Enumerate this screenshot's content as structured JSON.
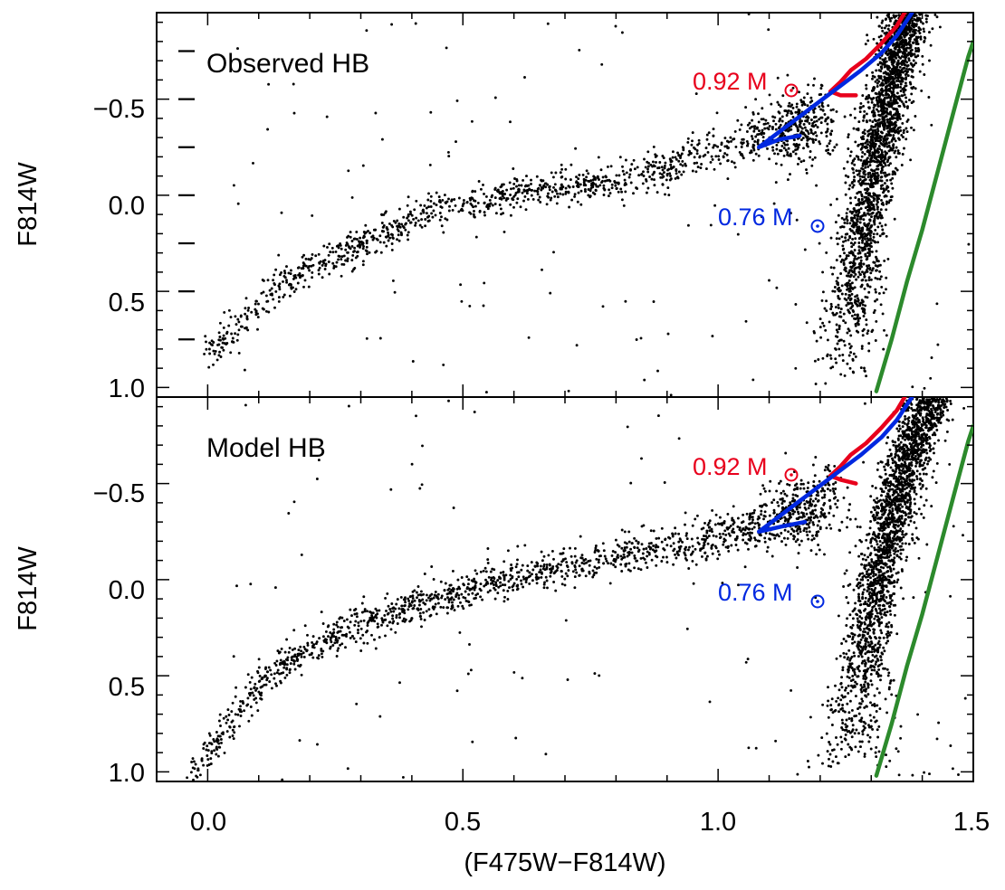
{
  "chart_data": {
    "type": "scatter",
    "xlabel": "(F475W−F814W)",
    "xlim": [
      -0.1,
      1.5
    ],
    "x_ticks": [
      "0.0",
      "0.5",
      "1.0",
      "1.5"
    ],
    "ylim": [
      1.05,
      -0.95
    ],
    "y_ticks": [
      "−0.5",
      "0.0",
      "0.5",
      "1.0"
    ],
    "colors": {
      "heavy": "#e8001c",
      "light": "#0028e0",
      "rgb_ridge": "#2c8a2c",
      "points": "#000000"
    },
    "panels": [
      {
        "title": "Observed HB",
        "ylabel": "F814W",
        "observed_ref_marks": [
          -0.75,
          -0.5,
          -0.25,
          0.0,
          0.25,
          0.5,
          0.75
        ],
        "points": {
          "hb_sequence": [
            {
              "x": 0.0,
              "y": 0.83
            },
            {
              "x": 0.05,
              "y": 0.7
            },
            {
              "x": 0.1,
              "y": 0.57
            },
            {
              "x": 0.15,
              "y": 0.48
            },
            {
              "x": 0.2,
              "y": 0.38
            },
            {
              "x": 0.3,
              "y": 0.26
            },
            {
              "x": 0.4,
              "y": 0.12
            },
            {
              "x": 0.5,
              "y": 0.05
            },
            {
              "x": 0.6,
              "y": -0.01
            },
            {
              "x": 0.7,
              "y": -0.04
            },
            {
              "x": 0.8,
              "y": -0.08
            },
            {
              "x": 0.9,
              "y": -0.14
            },
            {
              "x": 1.0,
              "y": -0.24
            },
            {
              "x": 1.1,
              "y": -0.32
            },
            {
              "x": 1.17,
              "y": -0.4
            },
            {
              "x": 1.22,
              "y": -0.47
            }
          ],
          "red_giant_branch": [
            {
              "x": 1.24,
              "y": 0.98
            },
            {
              "x": 1.26,
              "y": 0.6
            },
            {
              "x": 1.28,
              "y": 0.2
            },
            {
              "x": 1.31,
              "y": -0.2
            },
            {
              "x": 1.34,
              "y": -0.6
            },
            {
              "x": 1.37,
              "y": -0.95
            }
          ]
        },
        "tracks": [
          {
            "name": "0.92 M⊙",
            "label": "0.92 M",
            "color_key": "heavy",
            "x": [
              1.27,
              1.24,
              1.22,
              1.24,
              1.26,
              1.29,
              1.32,
              1.35,
              1.37
            ],
            "y": [
              -0.52,
              -0.52,
              -0.54,
              -0.59,
              -0.65,
              -0.71,
              -0.79,
              -0.88,
              -0.97
            ]
          },
          {
            "name": "0.76 M⊙",
            "label": "0.76 M",
            "color_key": "light",
            "x": [
              1.16,
              1.12,
              1.08,
              1.12,
              1.16,
              1.2,
              1.24,
              1.28,
              1.32,
              1.35,
              1.38
            ],
            "y": [
              -0.31,
              -0.29,
              -0.25,
              -0.33,
              -0.41,
              -0.49,
              -0.57,
              -0.65,
              -0.74,
              -0.83,
              -0.95
            ]
          }
        ],
        "rgb_ridge": {
          "x": [
            1.31,
            1.34,
            1.37,
            1.4,
            1.43,
            1.46,
            1.49,
            1.5
          ],
          "y": [
            1.02,
            0.75,
            0.45,
            0.18,
            -0.12,
            -0.42,
            -0.72,
            -0.8
          ]
        }
      },
      {
        "title": "Model HB",
        "ylabel": "F814W",
        "observed_ref_marks": [],
        "points": {
          "hb_sequence": [
            {
              "x": -0.03,
              "y": 1.02
            },
            {
              "x": 0.0,
              "y": 0.9
            },
            {
              "x": 0.05,
              "y": 0.72
            },
            {
              "x": 0.1,
              "y": 0.56
            },
            {
              "x": 0.15,
              "y": 0.44
            },
            {
              "x": 0.2,
              "y": 0.36
            },
            {
              "x": 0.3,
              "y": 0.23
            },
            {
              "x": 0.4,
              "y": 0.14
            },
            {
              "x": 0.5,
              "y": 0.07
            },
            {
              "x": 0.6,
              "y": -0.01
            },
            {
              "x": 0.7,
              "y": -0.06
            },
            {
              "x": 0.8,
              "y": -0.12
            },
            {
              "x": 0.9,
              "y": -0.17
            },
            {
              "x": 1.0,
              "y": -0.22
            },
            {
              "x": 1.1,
              "y": -0.28
            },
            {
              "x": 1.18,
              "y": -0.4
            },
            {
              "x": 1.24,
              "y": -0.5
            }
          ],
          "red_giant_branch": [
            {
              "x": 1.26,
              "y": 0.98
            },
            {
              "x": 1.28,
              "y": 0.6
            },
            {
              "x": 1.3,
              "y": 0.2
            },
            {
              "x": 1.33,
              "y": -0.2
            },
            {
              "x": 1.37,
              "y": -0.6
            },
            {
              "x": 1.42,
              "y": -0.95
            }
          ]
        },
        "tracks": [
          {
            "name": "0.92 M⊙",
            "label": "0.92 M",
            "color_key": "heavy",
            "x": [
              1.27,
              1.24,
              1.22,
              1.24,
              1.26,
              1.29,
              1.32,
              1.35,
              1.37
            ],
            "y": [
              -0.5,
              -0.52,
              -0.54,
              -0.59,
              -0.65,
              -0.71,
              -0.79,
              -0.88,
              -0.97
            ]
          },
          {
            "name": "0.76 M⊙",
            "label": "0.76 M",
            "color_key": "light",
            "x": [
              1.17,
              1.13,
              1.08,
              1.12,
              1.16,
              1.2,
              1.24,
              1.28,
              1.32,
              1.35,
              1.38
            ],
            "y": [
              -0.3,
              -0.28,
              -0.25,
              -0.33,
              -0.41,
              -0.49,
              -0.57,
              -0.65,
              -0.74,
              -0.83,
              -0.95
            ]
          }
        ],
        "rgb_ridge": {
          "x": [
            1.31,
            1.34,
            1.37,
            1.4,
            1.43,
            1.46,
            1.49,
            1.5
          ],
          "y": [
            1.02,
            0.75,
            0.45,
            0.18,
            -0.12,
            -0.42,
            -0.72,
            -0.8
          ]
        }
      }
    ]
  }
}
